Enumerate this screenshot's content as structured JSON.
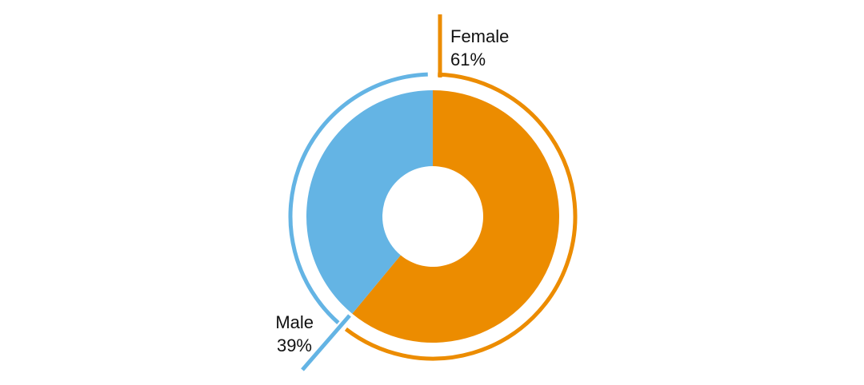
{
  "chart_data": {
    "type": "pie",
    "variant": "donut",
    "title": "",
    "slices": [
      {
        "label": "Female",
        "value": 61,
        "value_label": "61%",
        "color": "#EC8C00"
      },
      {
        "label": "Male",
        "value": 39,
        "value_label": "39%",
        "color": "#64B4E4"
      }
    ],
    "outline_arcs": true,
    "legend": "none"
  }
}
